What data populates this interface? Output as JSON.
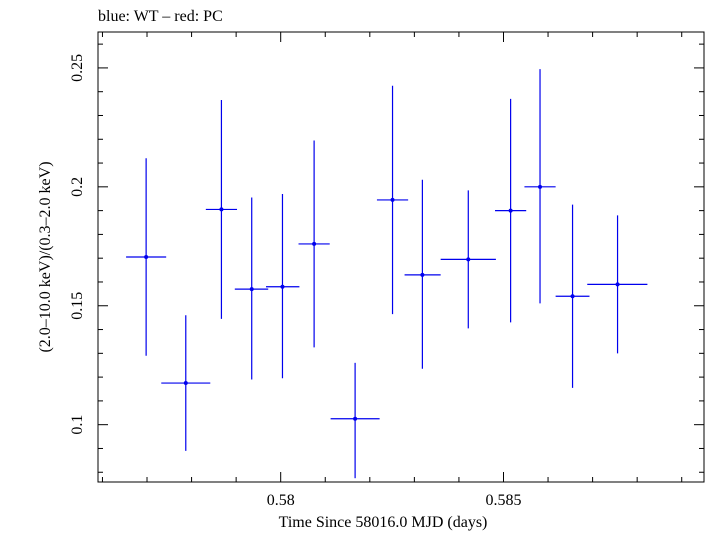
{
  "chart_data": {
    "type": "scatter",
    "title": "blue: WT – red: PC",
    "xlabel": "Time Since 58016.0 MJD (days)",
    "ylabel": "(2.0–10.0 keV)/(0.3–2.0 keV)",
    "xlim": [
      0.5759,
      0.5895
    ],
    "ylim": [
      0.0759,
      0.2651
    ],
    "x_ticks": [
      0.58,
      0.585
    ],
    "x_tick_labels": [
      "0.58",
      "0.585"
    ],
    "y_ticks": [
      0.1,
      0.15,
      0.2,
      0.25
    ],
    "y_tick_labels": [
      "0.1",
      "0.15",
      "0.2",
      "0.25"
    ],
    "grid": false,
    "series": [
      {
        "color": "#0000ee",
        "points": [
          {
            "x": 0.57698,
            "xlo": 0.57653,
            "xhi": 0.57743,
            "y": 0.1705,
            "ylo": 0.129,
            "yhi": 0.212
          },
          {
            "x": 0.57787,
            "xlo": 0.57732,
            "xhi": 0.57842,
            "y": 0.1175,
            "ylo": 0.089,
            "yhi": 0.146
          },
          {
            "x": 0.57867,
            "xlo": 0.57832,
            "xhi": 0.57902,
            "y": 0.1905,
            "ylo": 0.1445,
            "yhi": 0.2365
          },
          {
            "x": 0.57935,
            "xlo": 0.57897,
            "xhi": 0.57972,
            "y": 0.157,
            "ylo": 0.119,
            "yhi": 0.1955
          },
          {
            "x": 0.58004,
            "xlo": 0.57967,
            "xhi": 0.58042,
            "y": 0.158,
            "ylo": 0.1195,
            "yhi": 0.197
          },
          {
            "x": 0.58075,
            "xlo": 0.5804,
            "xhi": 0.5811,
            "y": 0.176,
            "ylo": 0.1325,
            "yhi": 0.2195
          },
          {
            "x": 0.58167,
            "xlo": 0.58112,
            "xhi": 0.58222,
            "y": 0.1025,
            "ylo": 0.0775,
            "yhi": 0.126
          },
          {
            "x": 0.58251,
            "xlo": 0.58216,
            "xhi": 0.58286,
            "y": 0.1945,
            "ylo": 0.1465,
            "yhi": 0.2425
          },
          {
            "x": 0.58318,
            "xlo": 0.58278,
            "xhi": 0.58359,
            "y": 0.163,
            "ylo": 0.1235,
            "yhi": 0.203
          },
          {
            "x": 0.58421,
            "xlo": 0.58359,
            "xhi": 0.58483,
            "y": 0.1695,
            "ylo": 0.1405,
            "yhi": 0.1985
          },
          {
            "x": 0.58516,
            "xlo": 0.58481,
            "xhi": 0.58551,
            "y": 0.19,
            "ylo": 0.143,
            "yhi": 0.237
          },
          {
            "x": 0.58582,
            "xlo": 0.58547,
            "xhi": 0.58617,
            "y": 0.2,
            "ylo": 0.151,
            "yhi": 0.2495
          },
          {
            "x": 0.58655,
            "xlo": 0.58617,
            "xhi": 0.58693,
            "y": 0.154,
            "ylo": 0.1155,
            "yhi": 0.1925
          },
          {
            "x": 0.58756,
            "xlo": 0.58688,
            "xhi": 0.58823,
            "y": 0.159,
            "ylo": 0.13,
            "yhi": 0.188
          }
        ]
      }
    ]
  }
}
